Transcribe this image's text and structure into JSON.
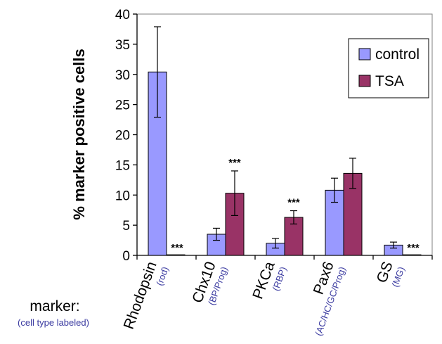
{
  "chart_data": {
    "type": "bar",
    "ylabel": "% marker positive cells",
    "ylim": [
      0,
      40
    ],
    "yticks": [
      "0",
      "5",
      "10",
      "15",
      "20",
      "25",
      "30",
      "35",
      "40"
    ],
    "categories": [
      "Rhodopsin",
      "Chx10",
      "PKCa",
      "Pax6",
      "GS"
    ],
    "category_sublabels": [
      "(rod)",
      "(BP/Prog)",
      "(RBP)",
      "(AC/HC/GC/Prog)",
      "(MG)"
    ],
    "row_label": "marker:",
    "row_sublabel": "(cell type labeled)",
    "series": [
      {
        "name": "control",
        "color": "#9999ff",
        "values": [
          30.4,
          3.5,
          2.0,
          10.8,
          1.7
        ],
        "errors": [
          7.5,
          1.0,
          0.8,
          2.0,
          0.5
        ]
      },
      {
        "name": "TSA",
        "color": "#993366",
        "values": [
          0.1,
          10.3,
          6.3,
          13.6,
          0.1
        ],
        "errors": [
          0,
          3.7,
          1.1,
          2.5,
          0
        ]
      }
    ],
    "significance": [
      "***",
      "***",
      "***",
      "",
      "***"
    ],
    "significance_on_series": [
      "TSA",
      "TSA",
      "TSA",
      "",
      "TSA"
    ],
    "legend_position": "top-right",
    "grid": false
  }
}
